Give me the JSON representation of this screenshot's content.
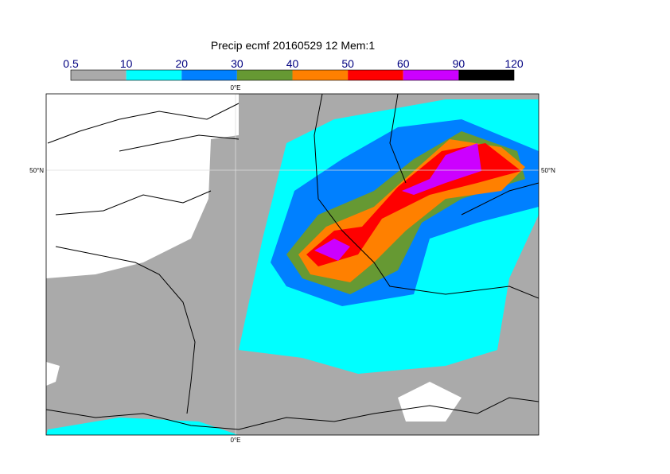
{
  "title": "Precip ecmf 20160529 12 Mem:1",
  "colorbar": {
    "levels": [
      0.5,
      10,
      20,
      30,
      40,
      50,
      60,
      90,
      120
    ],
    "colors": [
      "#aaaaaa",
      "#00ffff",
      "#0080ff",
      "#669933",
      "#ff8000",
      "#ff0000",
      "#cc00ff",
      "#000000"
    ]
  },
  "map": {
    "lon_label_top": "0°E",
    "lon_label_bottom": "0°E",
    "lat_label_left": "50°N",
    "lat_label_right": "50°N"
  }
}
